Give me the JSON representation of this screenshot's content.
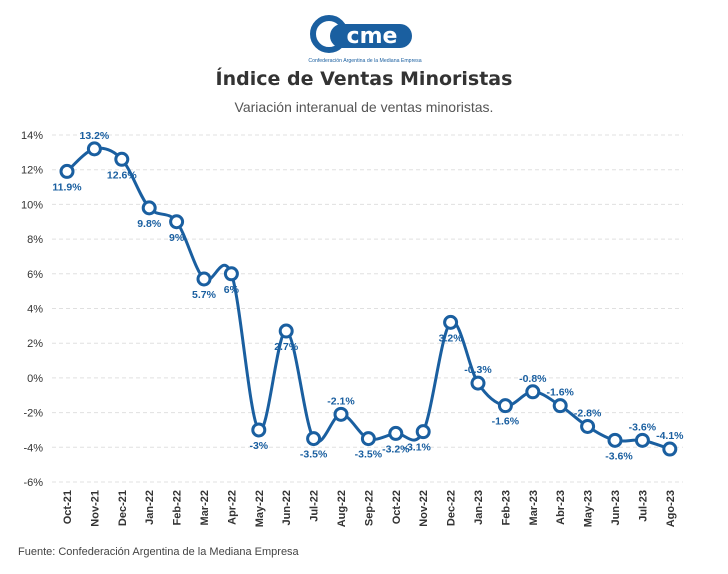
{
  "logo": {
    "text": "cme",
    "caption": "Confederación Argentina de la Mediana Empresa"
  },
  "title": "Índice de Ventas Minoristas",
  "subtitle": "Variación interanual de ventas minoristas.",
  "source": "Fuente: Confederación Argentina de la Mediana Empresa",
  "colors": {
    "line": "#1a5fa0",
    "label": "#1a5fa0",
    "grid": "#e0e0e0",
    "axis_text": "#333333"
  },
  "chart_data": {
    "type": "line",
    "title": "Índice de Ventas Minoristas",
    "subtitle": "Variación interanual de ventas minoristas.",
    "xlabel": "",
    "ylabel": "",
    "categories": [
      "Oct-21",
      "Nov-21",
      "Dec-21",
      "Jan-22",
      "Feb-22",
      "Mar-22",
      "Apr-22",
      "May-22",
      "Jun-22",
      "Jul-22",
      "Aug-22",
      "Sep-22",
      "Oct-22",
      "Nov-22",
      "Dec-22",
      "Jan-23",
      "Feb-23",
      "Mar-23",
      "Abr-23",
      "May-23",
      "Jun-23",
      "Jul-23",
      "Ago-23"
    ],
    "values": [
      11.9,
      13.2,
      12.6,
      9.8,
      9.0,
      5.7,
      6.0,
      -3.0,
      2.7,
      -3.5,
      -2.1,
      -3.5,
      -3.2,
      -3.1,
      3.2,
      -0.3,
      -1.6,
      -0.8,
      -1.6,
      -2.8,
      -3.6,
      -3.6,
      -4.1
    ],
    "data_labels": [
      "11.9%",
      "13.2%",
      "12.6%",
      "9.8%",
      "9%",
      "5.7%",
      "6%",
      "-3%",
      "2.7%",
      "-3.5%",
      "-2.1%",
      "-3.5%",
      "-3.2%",
      "-3.1%",
      "3.2%",
      "-0.3%",
      "-1.6%",
      "-0.8%",
      "-1.6%",
      "-2.8%",
      "-3.6%",
      "-3.6%",
      "-4.1%"
    ],
    "yticks": [
      14,
      12,
      10,
      8,
      6,
      4,
      2,
      0,
      -2,
      -4,
      -6
    ],
    "ytick_labels": [
      "14%",
      "12%",
      "10%",
      "8%",
      "6%",
      "4%",
      "2%",
      "0%",
      "-2%",
      "-4%",
      "-6%"
    ],
    "ylim": [
      -6,
      14
    ],
    "grid": true
  }
}
